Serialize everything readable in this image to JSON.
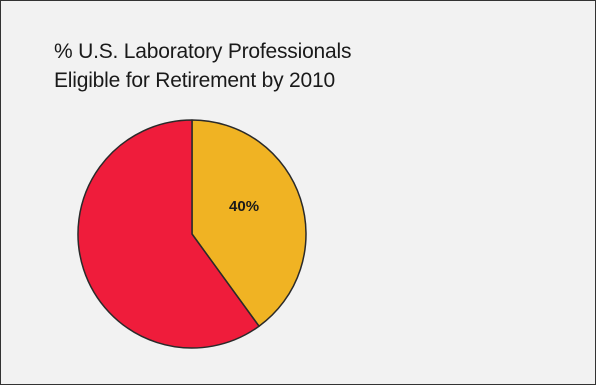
{
  "chart_data": {
    "type": "pie",
    "title_lines": [
      "% U.S. Laboratory Professionals",
      "Eligible for Retirement by 2010"
    ],
    "slices": [
      {
        "label": "40%",
        "value": 40,
        "color": "#f0b323"
      },
      {
        "label": "",
        "value": 60,
        "color": "#ef1c3b"
      }
    ],
    "start_angle": "top",
    "direction": "clockwise",
    "outline_color": "#2a2a2a",
    "legend": "none"
  }
}
